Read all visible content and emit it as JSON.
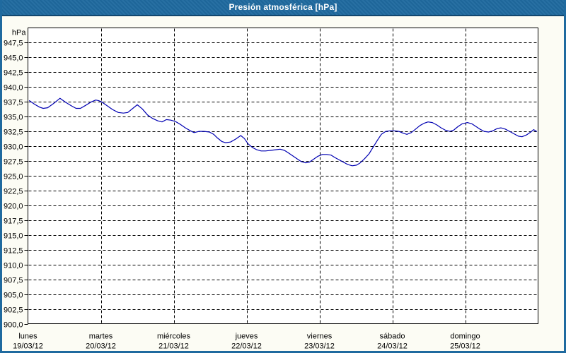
{
  "title": "Presión atmosférica [hPa]",
  "colors": {
    "frame": "#1F6A9F",
    "titlebar": "#1F6A9F",
    "titlebar_edge": "#12476E",
    "title_text": "#FFFFFF",
    "content_background": "#FCFCF4",
    "plot_background": "#FFFFFF",
    "grid": "#000000",
    "axis": "#000000",
    "series_line": "#0000B2",
    "tick_text": "#000000"
  },
  "chart_data": {
    "type": "line",
    "title": "Presión atmosférica [hPa]",
    "ylabel": "hPa",
    "xlabel": "",
    "ylim": [
      900,
      950
    ],
    "xlim_days": [
      0,
      7
    ],
    "grid": "dashed",
    "legend": "none",
    "yticks": [
      {
        "label": "947,5",
        "value": 947.5
      },
      {
        "label": "945,0",
        "value": 945.0
      },
      {
        "label": "942,5",
        "value": 942.5
      },
      {
        "label": "940,0",
        "value": 940.0
      },
      {
        "label": "937,5",
        "value": 937.5
      },
      {
        "label": "935,0",
        "value": 935.0
      },
      {
        "label": "932,5",
        "value": 932.5
      },
      {
        "label": "930,0",
        "value": 930.0
      },
      {
        "label": "927,5",
        "value": 927.5
      },
      {
        "label": "925,0",
        "value": 925.0
      },
      {
        "label": "922,5",
        "value": 922.5
      },
      {
        "label": "920,0",
        "value": 920.0
      },
      {
        "label": "917,5",
        "value": 917.5
      },
      {
        "label": "915,0",
        "value": 915.0
      },
      {
        "label": "912,5",
        "value": 912.5
      },
      {
        "label": "910,0",
        "value": 910.0
      },
      {
        "label": "907,5",
        "value": 907.5
      },
      {
        "label": "905,0",
        "value": 905.0
      },
      {
        "label": "902,5",
        "value": 902.5
      },
      {
        "label": "900,0",
        "value": 900.0
      }
    ],
    "xticks_days": [
      {
        "name": "lunes",
        "date": "19/03/12",
        "day_index": 0
      },
      {
        "name": "martes",
        "date": "20/03/12",
        "day_index": 1
      },
      {
        "name": "miércoles",
        "date": "21/03/12",
        "day_index": 2
      },
      {
        "name": "jueves",
        "date": "22/03/12",
        "day_index": 3
      },
      {
        "name": "viernes",
        "date": "23/03/12",
        "day_index": 4
      },
      {
        "name": "sábado",
        "date": "24/03/12",
        "day_index": 5
      },
      {
        "name": "domingo",
        "date": "25/03/12",
        "day_index": 6
      }
    ],
    "series": [
      {
        "name": "Presión atmosférica",
        "unit": "hPa",
        "points": [
          [
            0.02,
            937.7
          ],
          [
            0.09,
            937.1
          ],
          [
            0.16,
            936.6
          ],
          [
            0.21,
            936.4
          ],
          [
            0.27,
            936.5
          ],
          [
            0.35,
            937.2
          ],
          [
            0.44,
            938.1
          ],
          [
            0.52,
            937.4
          ],
          [
            0.6,
            936.8
          ],
          [
            0.66,
            936.4
          ],
          [
            0.72,
            936.4
          ],
          [
            0.79,
            936.9
          ],
          [
            0.87,
            937.5
          ],
          [
            0.93,
            937.8
          ],
          [
            0.97,
            937.7
          ],
          [
            1.01,
            937.5
          ],
          [
            1.08,
            936.9
          ],
          [
            1.16,
            936.2
          ],
          [
            1.24,
            935.7
          ],
          [
            1.31,
            935.6
          ],
          [
            1.37,
            935.7
          ],
          [
            1.45,
            936.5
          ],
          [
            1.5,
            937.0
          ],
          [
            1.57,
            936.3
          ],
          [
            1.64,
            935.3
          ],
          [
            1.71,
            934.7
          ],
          [
            1.78,
            934.3
          ],
          [
            1.84,
            934.1
          ],
          [
            1.9,
            934.5
          ],
          [
            1.96,
            934.4
          ],
          [
            2.02,
            934.2
          ],
          [
            2.09,
            933.7
          ],
          [
            2.16,
            933.1
          ],
          [
            2.23,
            932.6
          ],
          [
            2.28,
            932.3
          ],
          [
            2.35,
            932.5
          ],
          [
            2.42,
            932.5
          ],
          [
            2.49,
            932.4
          ],
          [
            2.55,
            932.0
          ],
          [
            2.6,
            931.4
          ],
          [
            2.66,
            930.8
          ],
          [
            2.71,
            930.6
          ],
          [
            2.78,
            930.7
          ],
          [
            2.85,
            931.2
          ],
          [
            2.92,
            931.8
          ],
          [
            2.97,
            931.3
          ],
          [
            3.02,
            930.4
          ],
          [
            3.08,
            929.8
          ],
          [
            3.14,
            929.4
          ],
          [
            3.2,
            929.2
          ],
          [
            3.26,
            929.2
          ],
          [
            3.33,
            929.3
          ],
          [
            3.4,
            929.4
          ],
          [
            3.46,
            929.5
          ],
          [
            3.52,
            929.3
          ],
          [
            3.57,
            928.9
          ],
          [
            3.63,
            928.4
          ],
          [
            3.69,
            927.9
          ],
          [
            3.75,
            927.4
          ],
          [
            3.81,
            927.2
          ],
          [
            3.86,
            927.3
          ],
          [
            3.92,
            927.8
          ],
          [
            3.98,
            928.3
          ],
          [
            4.04,
            928.6
          ],
          [
            4.1,
            928.6
          ],
          [
            4.16,
            928.5
          ],
          [
            4.21,
            928.1
          ],
          [
            4.27,
            927.7
          ],
          [
            4.33,
            927.3
          ],
          [
            4.39,
            926.9
          ],
          [
            4.45,
            926.7
          ],
          [
            4.51,
            926.8
          ],
          [
            4.56,
            927.2
          ],
          [
            4.62,
            927.9
          ],
          [
            4.68,
            928.7
          ],
          [
            4.74,
            929.9
          ],
          [
            4.8,
            931.1
          ],
          [
            4.85,
            932.0
          ],
          [
            4.91,
            932.5
          ],
          [
            4.97,
            932.6
          ],
          [
            5.03,
            932.6
          ],
          [
            5.09,
            932.5
          ],
          [
            5.15,
            932.2
          ],
          [
            5.2,
            932.0
          ],
          [
            5.26,
            932.3
          ],
          [
            5.32,
            932.9
          ],
          [
            5.38,
            933.5
          ],
          [
            5.44,
            933.9
          ],
          [
            5.49,
            934.1
          ],
          [
            5.55,
            934.0
          ],
          [
            5.61,
            933.6
          ],
          [
            5.67,
            933.1
          ],
          [
            5.73,
            932.7
          ],
          [
            5.79,
            932.5
          ],
          [
            5.84,
            932.7
          ],
          [
            5.9,
            933.3
          ],
          [
            5.96,
            933.8
          ],
          [
            6.03,
            934.0
          ],
          [
            6.09,
            933.8
          ],
          [
            6.14,
            933.4
          ],
          [
            6.2,
            932.9
          ],
          [
            6.26,
            932.5
          ],
          [
            6.32,
            932.4
          ],
          [
            6.38,
            932.6
          ],
          [
            6.44,
            933.0
          ],
          [
            6.49,
            933.1
          ],
          [
            6.55,
            932.9
          ],
          [
            6.61,
            932.5
          ],
          [
            6.67,
            932.1
          ],
          [
            6.73,
            931.7
          ],
          [
            6.78,
            931.6
          ],
          [
            6.84,
            931.9
          ],
          [
            6.9,
            932.4
          ],
          [
            6.94,
            932.8
          ],
          [
            6.98,
            932.5
          ]
        ]
      }
    ]
  }
}
